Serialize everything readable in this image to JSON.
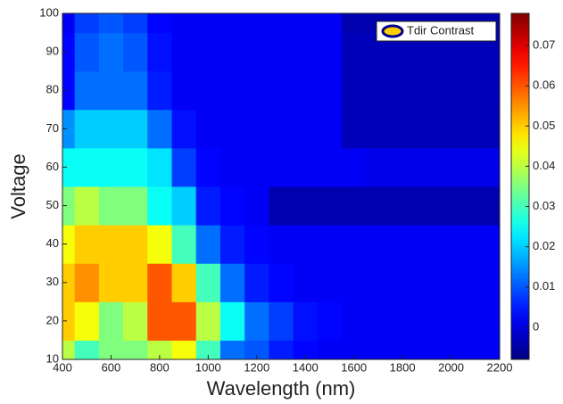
{
  "chart_data": {
    "type": "contour",
    "xlabel": "Wavelength (nm)",
    "ylabel": "Voltage",
    "legend": "Tdir Contrast",
    "x": [
      400,
      500,
      600,
      700,
      800,
      900,
      1000,
      1100,
      1200,
      1300,
      1400,
      1500,
      1600,
      1700,
      1800,
      1900,
      2000,
      2100,
      2200
    ],
    "y": [
      10,
      20,
      30,
      40,
      50,
      60,
      70,
      80,
      90,
      100
    ],
    "z": [
      [
        0.04,
        0.03,
        0.035,
        0.035,
        0.04,
        0.045,
        0.03,
        0.012,
        0.01,
        0.005,
        0.003,
        0.002,
        0.002,
        0.002,
        0.002,
        0.002,
        0.002,
        0.002,
        0.002
      ],
      [
        0.05,
        0.045,
        0.035,
        0.04,
        0.06,
        0.06,
        0.04,
        0.025,
        0.012,
        0.008,
        0.004,
        0.003,
        0.002,
        0.002,
        0.002,
        0.002,
        0.002,
        0.002,
        0.002
      ],
      [
        0.05,
        0.055,
        0.05,
        0.05,
        0.06,
        0.05,
        0.03,
        0.012,
        0.005,
        0.003,
        0.002,
        0.002,
        0.002,
        0.002,
        0.002,
        0.002,
        0.002,
        0.002,
        0.002
      ],
      [
        0.045,
        0.05,
        0.05,
        0.05,
        0.045,
        0.03,
        0.012,
        0.005,
        0.003,
        0.002,
        0.002,
        0.002,
        0.002,
        0.002,
        0.002,
        0.002,
        0.002,
        0.002,
        0.002
      ],
      [
        0.035,
        0.04,
        0.035,
        0.035,
        0.025,
        0.02,
        0.005,
        0.003,
        0.002,
        -0.004,
        -0.004,
        -0.004,
        -0.004,
        -0.004,
        -0.004,
        -0.004,
        -0.004,
        -0.004,
        -0.004
      ],
      [
        0.025,
        0.025,
        0.025,
        0.025,
        0.022,
        0.008,
        0.003,
        0.002,
        0.002,
        0.002,
        0.002,
        0.002,
        0.002,
        0.001,
        0.001,
        0.001,
        0.001,
        0.001,
        0.001
      ],
      [
        0.015,
        0.02,
        0.02,
        0.02,
        0.012,
        0.004,
        0.002,
        0.002,
        0.002,
        0.002,
        0.002,
        0.002,
        -0.003,
        -0.003,
        -0.003,
        -0.003,
        -0.003,
        -0.003,
        -0.003
      ],
      [
        0.003,
        0.012,
        0.012,
        0.012,
        0.005,
        0.002,
        0.002,
        0.002,
        0.002,
        0.002,
        0.002,
        0.002,
        -0.003,
        -0.003,
        -0.003,
        -0.003,
        -0.003,
        -0.003,
        -0.003
      ],
      [
        0.003,
        0.01,
        0.012,
        0.01,
        0.004,
        0.002,
        0.002,
        0.002,
        0.002,
        0.002,
        0.002,
        0.002,
        -0.003,
        -0.003,
        -0.003,
        -0.003,
        -0.003,
        -0.003,
        -0.003
      ],
      [
        0.002,
        0.008,
        0.01,
        0.008,
        0.003,
        0.002,
        0.002,
        0.002,
        0.002,
        0.002,
        0.002,
        0.002,
        -0.004,
        -0.004,
        -0.004,
        -0.004,
        -0.004,
        -0.004,
        -0.004
      ]
    ],
    "xlim": [
      400,
      2200
    ],
    "xticks": [
      400,
      600,
      800,
      1000,
      1200,
      1400,
      1600,
      1800,
      2000,
      2200
    ],
    "ylim": [
      10,
      100
    ],
    "yticks": [
      10,
      20,
      30,
      40,
      50,
      60,
      70,
      80,
      90,
      100
    ],
    "clim": [
      -0.008,
      0.078
    ],
    "cticks": [
      0,
      0.01,
      0.02,
      0.03,
      0.04,
      0.05,
      0.06,
      0.07
    ],
    "colormap": "jet"
  }
}
